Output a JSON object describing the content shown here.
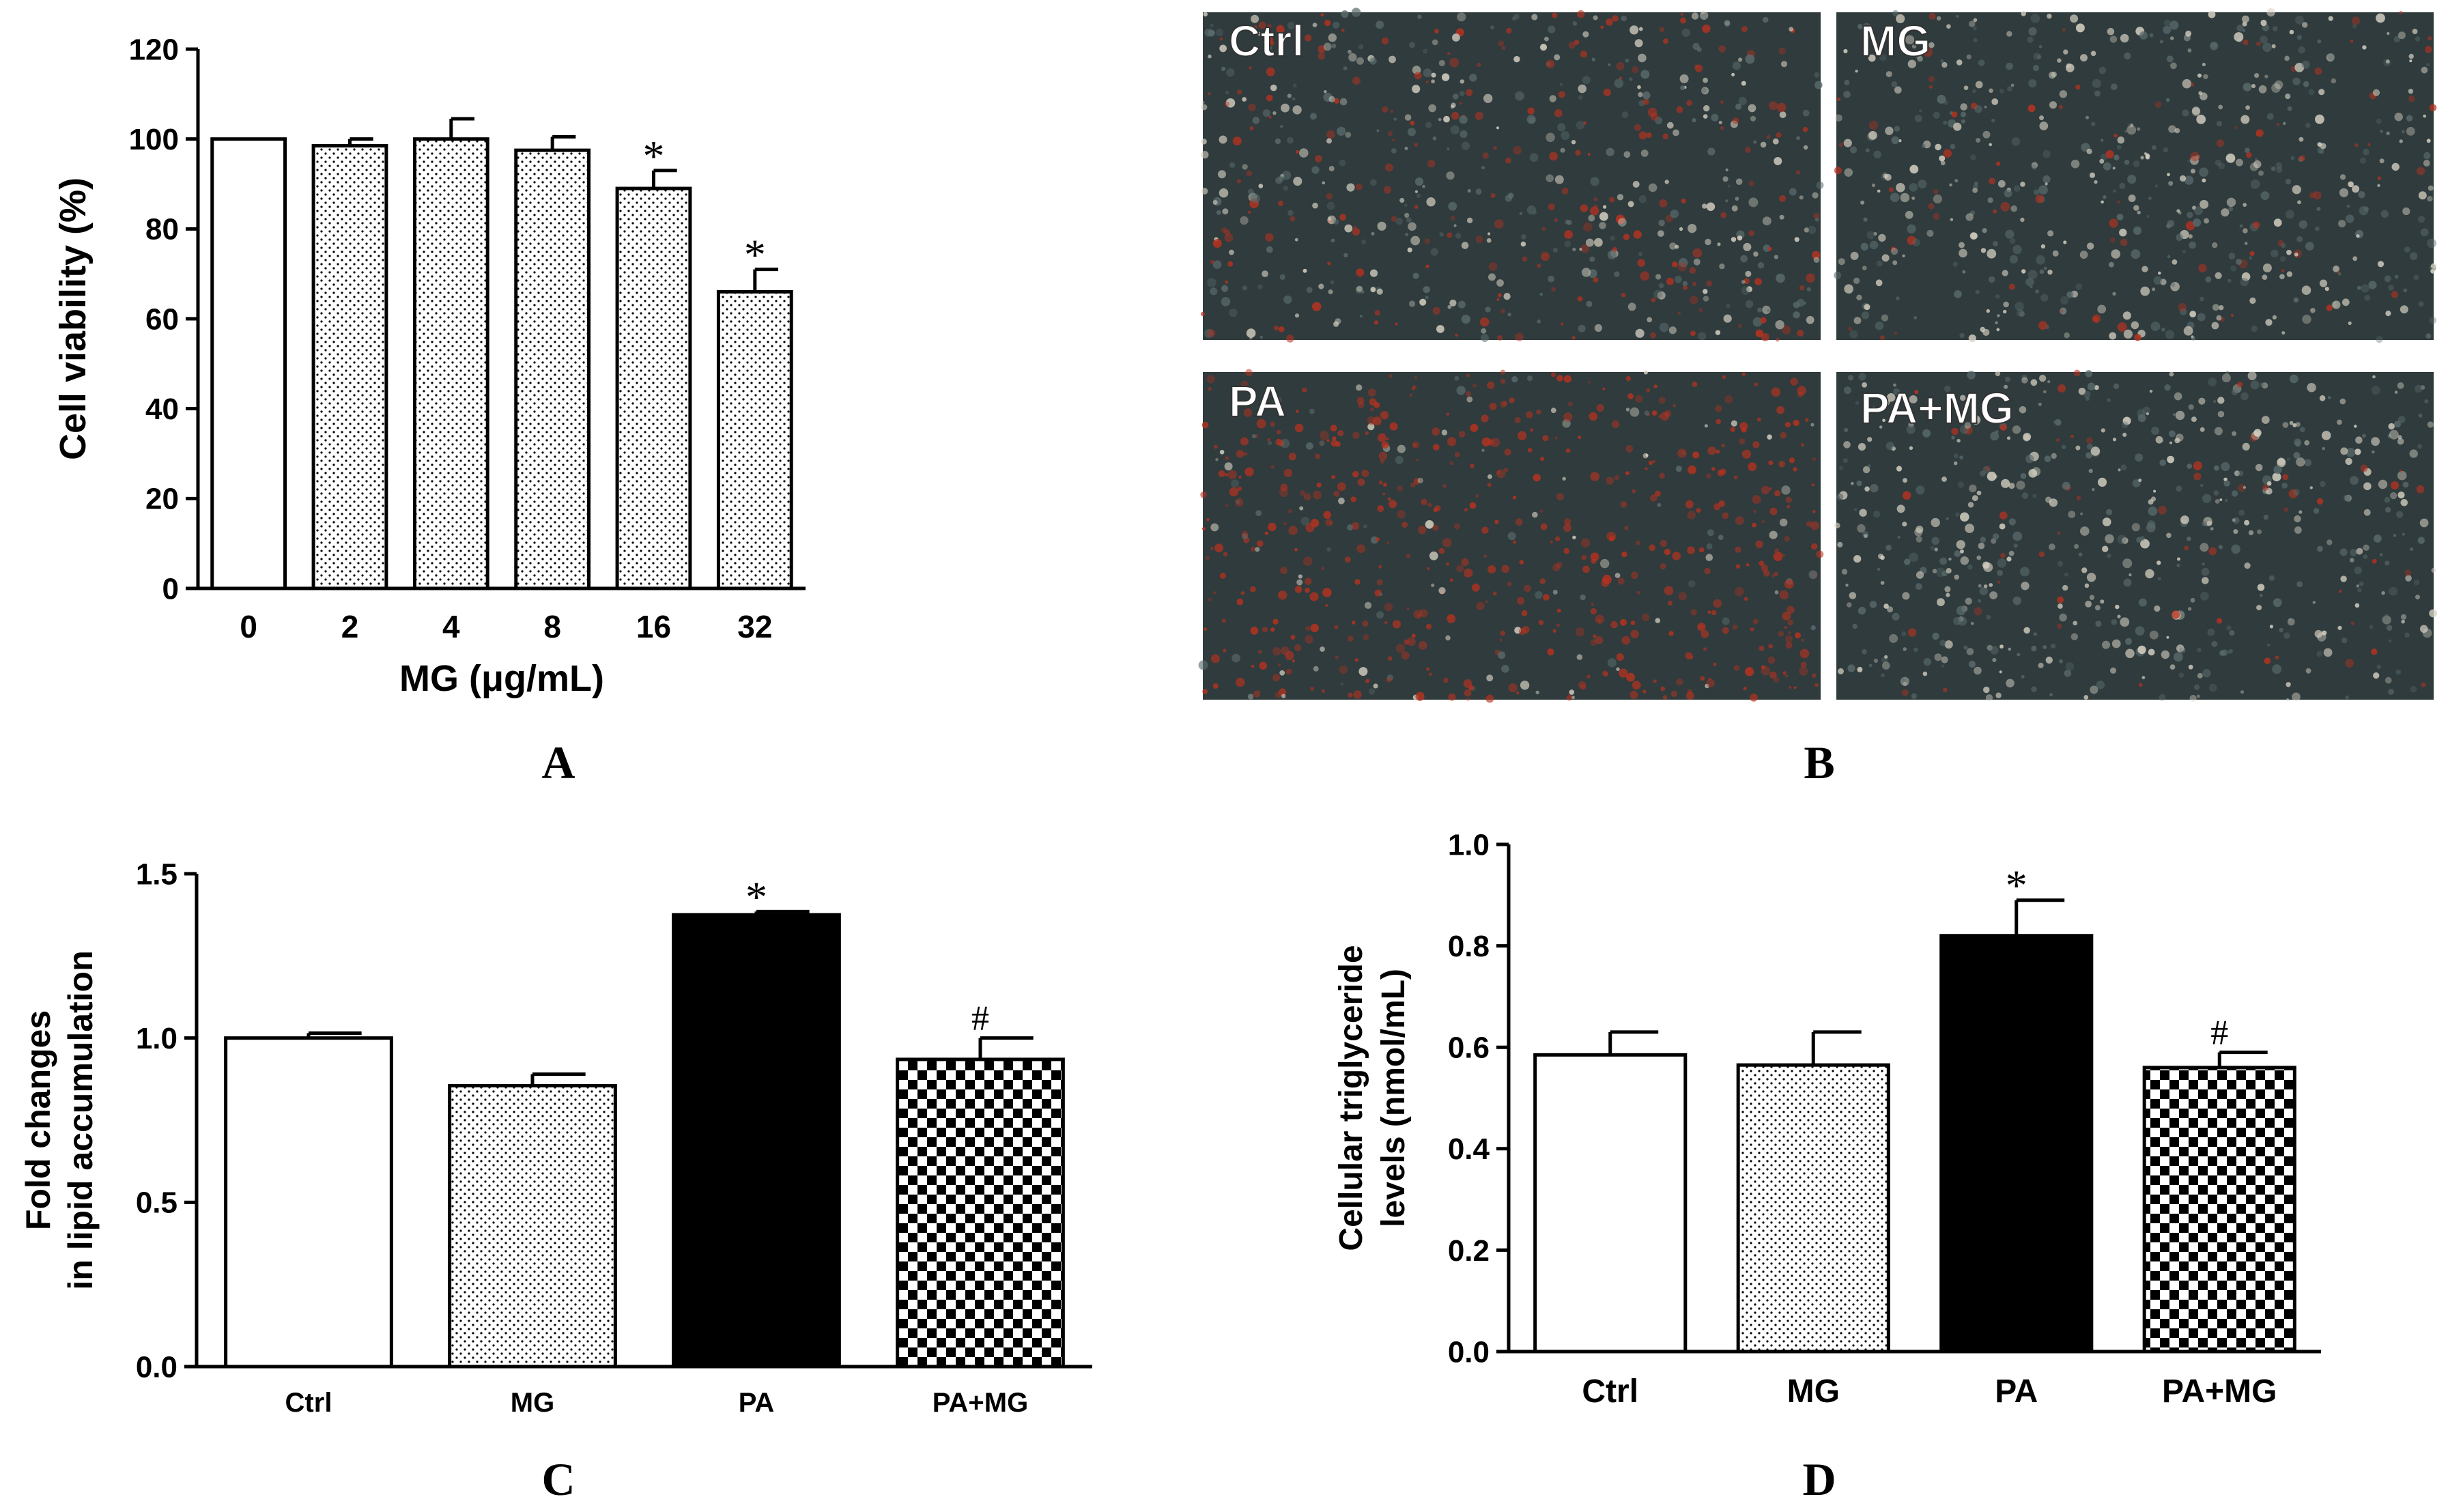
{
  "panel_labels": [
    "A",
    "B",
    "C",
    "D"
  ],
  "colors": {
    "ink": "#000000",
    "paper": "#ffffff",
    "cells_dark": "#2f3b3d",
    "stain_red": "#b8321f",
    "cells_light": "#d9d3c4"
  },
  "micrographs": [
    {
      "label": "Ctrl",
      "stain": 0.35
    },
    {
      "label": "MG",
      "stain": 0.12
    },
    {
      "label": "PA",
      "stain": 0.85
    },
    {
      "label": "PA+MG",
      "stain": 0.08
    }
  ],
  "chart_data": [
    {
      "panel": "A",
      "type": "bar",
      "categories": [
        "0",
        "2",
        "4",
        "8",
        "16",
        "32"
      ],
      "values": [
        100,
        98.5,
        100,
        97.5,
        89,
        66
      ],
      "errors": [
        0,
        1.5,
        4.5,
        3,
        4,
        5
      ],
      "patterns": [
        "white",
        "dots",
        "dots",
        "dots",
        "dots",
        "dots"
      ],
      "markers": [
        "",
        "",
        "",
        "",
        "*",
        "*"
      ],
      "xlabel": "MG (μg/mL)",
      "ylabel": "Cell viability (%)",
      "ylim": [
        0,
        120
      ],
      "yticks": [
        "0",
        "20",
        "40",
        "60",
        "80",
        "100",
        "120"
      ]
    },
    {
      "panel": "C",
      "type": "bar",
      "categories": [
        "Ctrl",
        "MG",
        "PA",
        "PA+MG"
      ],
      "values": [
        1.0,
        0.855,
        1.375,
        0.935
      ],
      "errors": [
        0.015,
        0.035,
        0.01,
        0.065
      ],
      "patterns": [
        "white",
        "dots",
        "black",
        "checker"
      ],
      "markers": [
        "",
        "",
        "*",
        "#"
      ],
      "xlabel": "",
      "ylabel_lines": [
        "Fold changes",
        "in lipid accumulation"
      ],
      "ylim": [
        0,
        1.5
      ],
      "yticks": [
        "0.0",
        "0.5",
        "1.0",
        "1.5"
      ]
    },
    {
      "panel": "D",
      "type": "bar",
      "categories": [
        "Ctrl",
        "MG",
        "PA",
        "PA+MG"
      ],
      "values": [
        0.585,
        0.565,
        0.82,
        0.56
      ],
      "errors": [
        0.045,
        0.065,
        0.07,
        0.03
      ],
      "patterns": [
        "white",
        "dots",
        "black",
        "checker"
      ],
      "markers": [
        "",
        "",
        "*",
        "#"
      ],
      "xlabel": "",
      "ylabel_lines": [
        "Cellular triglyceride",
        "levels (nmol/mL)"
      ],
      "ylim": [
        0,
        1.0
      ],
      "yticks": [
        "0.0",
        "0.2",
        "0.4",
        "0.6",
        "0.8",
        "1.0"
      ]
    }
  ]
}
